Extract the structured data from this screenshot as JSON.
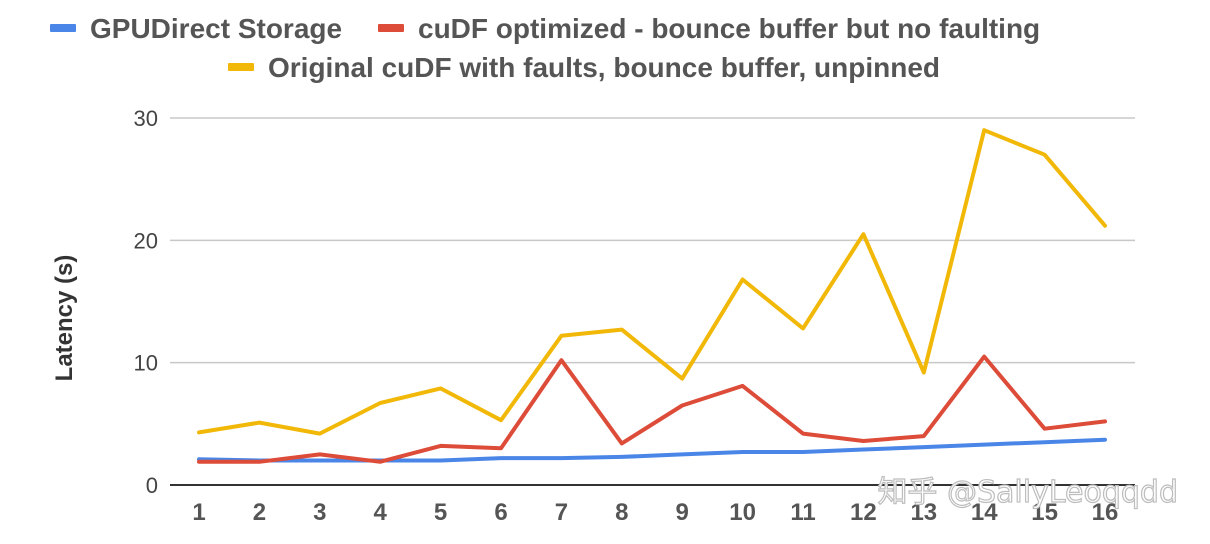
{
  "chart_data": {
    "type": "line",
    "title": "",
    "xlabel": "",
    "ylabel": "Latency (s)",
    "categories": [
      "1",
      "2",
      "3",
      "4",
      "5",
      "6",
      "7",
      "8",
      "9",
      "10",
      "11",
      "12",
      "13",
      "14",
      "15",
      "16"
    ],
    "ylim": [
      0,
      30
    ],
    "yticks": [
      0,
      10,
      20,
      30
    ],
    "grid": true,
    "legend_position": "top",
    "series": [
      {
        "name": "GPUDirect Storage",
        "color": "#4a86e8",
        "values": [
          2.1,
          2.0,
          2.0,
          2.0,
          2.0,
          2.2,
          2.2,
          2.3,
          2.5,
          2.7,
          2.7,
          2.9,
          3.1,
          3.3,
          3.5,
          3.7
        ]
      },
      {
        "name": "cuDF optimized - bounce buffer but no faulting",
        "color": "#dd4b39",
        "values": [
          1.9,
          1.9,
          2.5,
          1.9,
          3.2,
          3.0,
          10.2,
          3.4,
          6.5,
          8.1,
          4.2,
          3.6,
          4.0,
          10.5,
          4.6,
          5.2
        ]
      },
      {
        "name": "Original cuDF with faults, bounce buffer, unpinned",
        "color": "#f1b808",
        "values": [
          4.3,
          5.1,
          4.2,
          6.7,
          7.9,
          5.3,
          12.2,
          12.7,
          8.7,
          16.8,
          12.8,
          20.5,
          9.2,
          29.0,
          27.0,
          21.2
        ]
      }
    ]
  },
  "watermark": {
    "text": "知乎 @SallyLeoqqdd"
  }
}
